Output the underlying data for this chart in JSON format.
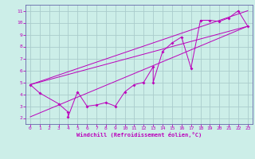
{
  "xlabel": "Windchill (Refroidissement éolien,°C)",
  "bg_color": "#cceee8",
  "grid_color": "#aacccc",
  "line_color": "#bb00bb",
  "spine_color": "#6666aa",
  "xlim": [
    -0.5,
    23.5
  ],
  "ylim": [
    1.5,
    11.5
  ],
  "xticks": [
    0,
    1,
    2,
    3,
    4,
    5,
    6,
    7,
    8,
    9,
    10,
    11,
    12,
    13,
    14,
    15,
    16,
    17,
    18,
    19,
    20,
    21,
    22,
    23
  ],
  "yticks": [
    2,
    3,
    4,
    5,
    6,
    7,
    8,
    9,
    10,
    11
  ],
  "scatter_x": [
    0,
    1,
    3,
    4,
    4,
    5,
    6,
    7,
    8,
    9,
    10,
    11,
    12,
    13,
    13,
    14,
    15,
    16,
    17,
    18,
    19,
    20,
    21,
    22,
    23
  ],
  "scatter_y": [
    4.8,
    4.1,
    3.2,
    2.5,
    2.1,
    4.2,
    3.0,
    3.1,
    3.3,
    3.0,
    4.2,
    4.8,
    5.0,
    6.3,
    5.0,
    7.6,
    8.3,
    8.8,
    6.2,
    10.2,
    10.2,
    10.1,
    10.4,
    11.0,
    9.7
  ],
  "line1_x": [
    0,
    23
  ],
  "line1_y": [
    4.8,
    9.7
  ],
  "line2_x": [
    0,
    23
  ],
  "line2_y": [
    4.8,
    11.0
  ],
  "line3_x": [
    0,
    23
  ],
  "line3_y": [
    2.1,
    9.7
  ]
}
